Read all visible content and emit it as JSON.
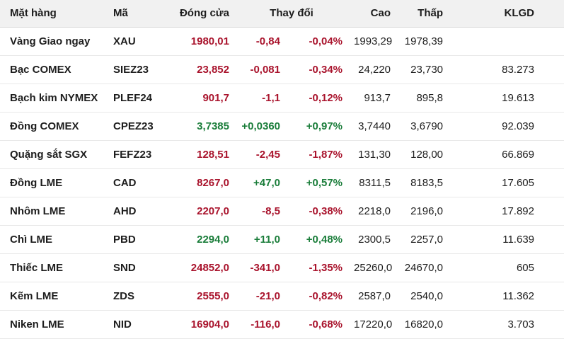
{
  "colors": {
    "up": "#1a7d3a",
    "down": "#a9132c",
    "header_bg": "#f1f1f1",
    "header_border": "#d9d9d9",
    "border": "#e8e8e8",
    "text": "#1d1d1d"
  },
  "header": {
    "item": "Mặt hàng",
    "code": "Mã",
    "close": "Đóng cửa",
    "change": "Thay đổi",
    "high": "Cao",
    "low": "Thấp",
    "volume": "KLGD"
  },
  "chart_data": {
    "type": "table",
    "columns": [
      "Mặt hàng",
      "Mã",
      "Đóng cửa",
      "Thay đổi",
      "Thay đổi %",
      "Cao",
      "Thấp",
      "KLGD"
    ],
    "rows": [
      {
        "item": "Vàng Giao ngay",
        "code": "XAU",
        "close": "1980,01",
        "close_dir": "down",
        "change": "-0,84",
        "change_pct": "-0,04%",
        "change_dir": "down",
        "high": "1993,29",
        "low": "1978,39",
        "volume": ""
      },
      {
        "item": "Bạc COMEX",
        "code": "SIEZ23",
        "close": "23,852",
        "close_dir": "down",
        "change": "-0,081",
        "change_pct": "-0,34%",
        "change_dir": "down",
        "high": "24,220",
        "low": "23,730",
        "volume": "83.273"
      },
      {
        "item": "Bạch kim NYMEX",
        "code": "PLEF24",
        "close": "901,7",
        "close_dir": "down",
        "change": "-1,1",
        "change_pct": "-0,12%",
        "change_dir": "down",
        "high": "913,7",
        "low": "895,8",
        "volume": "19.613"
      },
      {
        "item": "Đồng COMEX",
        "code": "CPEZ23",
        "close": "3,7385",
        "close_dir": "up",
        "change": "+0,0360",
        "change_pct": "+0,97%",
        "change_dir": "up",
        "high": "3,7440",
        "low": "3,6790",
        "volume": "92.039"
      },
      {
        "item": "Quặng sắt SGX",
        "code": "FEFZ23",
        "close": "128,51",
        "close_dir": "down",
        "change": "-2,45",
        "change_pct": "-1,87%",
        "change_dir": "down",
        "high": "131,30",
        "low": "128,00",
        "volume": "66.869"
      },
      {
        "item": "Đồng LME",
        "code": "CAD",
        "close": "8267,0",
        "close_dir": "down",
        "change": "+47,0",
        "change_pct": "+0,57%",
        "change_dir": "up",
        "high": "8311,5",
        "low": "8183,5",
        "volume": "17.605"
      },
      {
        "item": "Nhôm LME",
        "code": "AHD",
        "close": "2207,0",
        "close_dir": "down",
        "change": "-8,5",
        "change_pct": "-0,38%",
        "change_dir": "down",
        "high": "2218,0",
        "low": "2196,0",
        "volume": "17.892"
      },
      {
        "item": "Chì LME",
        "code": "PBD",
        "close": "2294,0",
        "close_dir": "up",
        "change": "+11,0",
        "change_pct": "+0,48%",
        "change_dir": "up",
        "high": "2300,5",
        "low": "2257,0",
        "volume": "11.639"
      },
      {
        "item": "Thiếc LME",
        "code": "SND",
        "close": "24852,0",
        "close_dir": "down",
        "change": "-341,0",
        "change_pct": "-1,35%",
        "change_dir": "down",
        "high": "25260,0",
        "low": "24670,0",
        "volume": "605"
      },
      {
        "item": "Kẽm LME",
        "code": "ZDS",
        "close": "2555,0",
        "close_dir": "down",
        "change": "-21,0",
        "change_pct": "-0,82%",
        "change_dir": "down",
        "high": "2587,0",
        "low": "2540,0",
        "volume": "11.362"
      },
      {
        "item": "Niken LME",
        "code": "NID",
        "close": "16904,0",
        "close_dir": "down",
        "change": "-116,0",
        "change_pct": "-0,68%",
        "change_dir": "down",
        "high": "17220,0",
        "low": "16820,0",
        "volume": "3.703"
      }
    ]
  }
}
